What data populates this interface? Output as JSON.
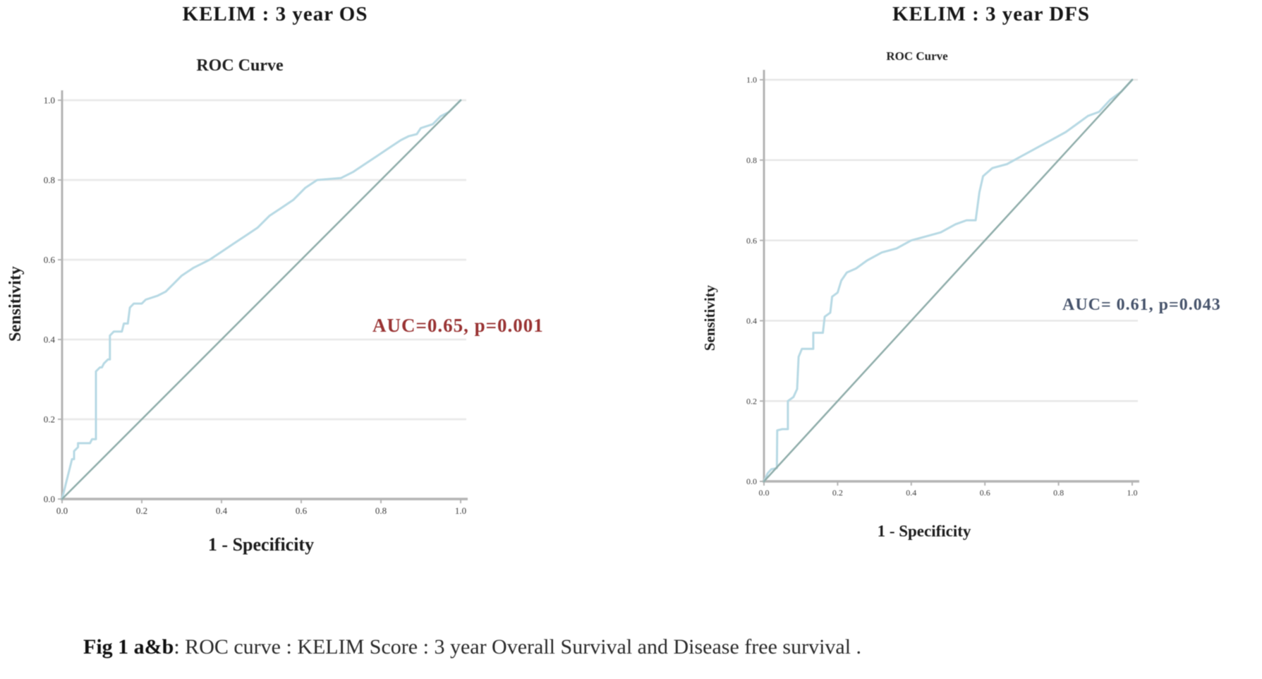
{
  "figure": {
    "caption_bold": "Fig 1 a&b",
    "caption_rest": ": ROC curve : KELIM Score : 3 year Overall Survival and Disease  free survival ."
  },
  "chart_data": [
    {
      "type": "line",
      "panel_title": "KELIM : 3 year OS",
      "title": "ROC Curve",
      "xlabel": "1 - Specificity",
      "ylabel": "Sensitivity",
      "xlim": [
        0,
        1
      ],
      "ylim": [
        0,
        1
      ],
      "xticks": [
        0,
        0.2,
        0.4,
        0.6,
        0.8,
        1.0
      ],
      "xtick_labels": [
        "0.0",
        "0.2",
        "0.4",
        "0.6",
        "0.8",
        "1.0"
      ],
      "yticks": [
        0,
        0.2,
        0.4,
        0.6,
        0.8,
        1.0
      ],
      "ytick_labels": [
        "0.0",
        "0.2",
        "0.4",
        "0.6",
        "0.8",
        "1.0"
      ],
      "grid": "horizontal",
      "grid_color": "#e8e8e8",
      "axis_color": "#b4b4b4",
      "legend": "none",
      "auc": 0.65,
      "p_value": 0.001,
      "annotation": {
        "text": "AUC=0.65, p=0.001",
        "color": "#993333"
      },
      "series": [
        {
          "name": "ROC curve",
          "color": "#b7d9e4",
          "width": 3,
          "points": [
            [
              0,
              0
            ],
            [
              0.01,
              0.04
            ],
            [
              0.02,
              0.08
            ],
            [
              0.025,
              0.1
            ],
            [
              0.03,
              0.1
            ],
            [
              0.03,
              0.12
            ],
            [
              0.04,
              0.13
            ],
            [
              0.04,
              0.14
            ],
            [
              0.07,
              0.14
            ],
            [
              0.075,
              0.15
            ],
            [
              0.085,
              0.15
            ],
            [
              0.085,
              0.32
            ],
            [
              0.095,
              0.33
            ],
            [
              0.1,
              0.33
            ],
            [
              0.105,
              0.34
            ],
            [
              0.115,
              0.35
            ],
            [
              0.12,
              0.35
            ],
            [
              0.12,
              0.41
            ],
            [
              0.13,
              0.42
            ],
            [
              0.15,
              0.42
            ],
            [
              0.155,
              0.44
            ],
            [
              0.165,
              0.44
            ],
            [
              0.17,
              0.48
            ],
            [
              0.18,
              0.49
            ],
            [
              0.2,
              0.49
            ],
            [
              0.21,
              0.5
            ],
            [
              0.24,
              0.51
            ],
            [
              0.26,
              0.52
            ],
            [
              0.28,
              0.54
            ],
            [
              0.3,
              0.56
            ],
            [
              0.33,
              0.58
            ],
            [
              0.35,
              0.59
            ],
            [
              0.37,
              0.6
            ],
            [
              0.4,
              0.62
            ],
            [
              0.43,
              0.64
            ],
            [
              0.46,
              0.66
            ],
            [
              0.49,
              0.68
            ],
            [
              0.52,
              0.71
            ],
            [
              0.55,
              0.73
            ],
            [
              0.58,
              0.75
            ],
            [
              0.61,
              0.78
            ],
            [
              0.64,
              0.8
            ],
            [
              0.7,
              0.805
            ],
            [
              0.73,
              0.82
            ],
            [
              0.76,
              0.84
            ],
            [
              0.79,
              0.86
            ],
            [
              0.82,
              0.88
            ],
            [
              0.85,
              0.9
            ],
            [
              0.87,
              0.91
            ],
            [
              0.89,
              0.915
            ],
            [
              0.9,
              0.93
            ],
            [
              0.93,
              0.94
            ],
            [
              0.95,
              0.96
            ],
            [
              0.97,
              0.97
            ],
            [
              1,
              1
            ]
          ]
        },
        {
          "name": "reference diagonal",
          "color": "#8fadaa",
          "width": 2.5,
          "points": [
            [
              0,
              0
            ],
            [
              1,
              1
            ]
          ]
        }
      ]
    },
    {
      "type": "line",
      "panel_title": "KELIM : 3 year DFS",
      "title": "ROC Curve",
      "xlabel": "1 - Specificity",
      "ylabel": "Sensitivity",
      "xlim": [
        0,
        1
      ],
      "ylim": [
        0,
        1
      ],
      "xticks": [
        0,
        0.2,
        0.4,
        0.6,
        0.8,
        1.0
      ],
      "xtick_labels": [
        "0.0",
        "0.2",
        "0.4",
        "0.6",
        "0.8",
        "1.0"
      ],
      "yticks": [
        0,
        0.2,
        0.4,
        0.6,
        0.8,
        1.0
      ],
      "ytick_labels": [
        "0.0",
        "0.2",
        "0.4",
        "0.6",
        "0.8",
        "1.0"
      ],
      "grid": "horizontal",
      "grid_color": "#e6e6e6",
      "axis_color": "#b4b4b4",
      "legend": "none",
      "auc": 0.61,
      "p_value": 0.043,
      "annotation": {
        "text": "AUC= 0.61, p=0.043",
        "color": "#46536b"
      },
      "series": [
        {
          "name": "ROC curve",
          "color": "#b7d9e4",
          "width": 3,
          "points": [
            [
              0,
              0
            ],
            [
              0.01,
              0.02
            ],
            [
              0.02,
              0.03
            ],
            [
              0.035,
              0.033
            ],
            [
              0.036,
              0.127
            ],
            [
              0.05,
              0.13
            ],
            [
              0.065,
              0.13
            ],
            [
              0.065,
              0.2
            ],
            [
              0.08,
              0.21
            ],
            [
              0.09,
              0.23
            ],
            [
              0.094,
              0.31
            ],
            [
              0.103,
              0.33
            ],
            [
              0.134,
              0.33
            ],
            [
              0.134,
              0.37
            ],
            [
              0.16,
              0.37
            ],
            [
              0.165,
              0.41
            ],
            [
              0.18,
              0.42
            ],
            [
              0.185,
              0.46
            ],
            [
              0.2,
              0.47
            ],
            [
              0.21,
              0.5
            ],
            [
              0.225,
              0.52
            ],
            [
              0.25,
              0.53
            ],
            [
              0.28,
              0.55
            ],
            [
              0.32,
              0.57
            ],
            [
              0.36,
              0.58
            ],
            [
              0.4,
              0.6
            ],
            [
              0.44,
              0.61
            ],
            [
              0.48,
              0.62
            ],
            [
              0.52,
              0.64
            ],
            [
              0.55,
              0.65
            ],
            [
              0.575,
              0.65
            ],
            [
              0.585,
              0.72
            ],
            [
              0.595,
              0.76
            ],
            [
              0.62,
              0.78
            ],
            [
              0.66,
              0.79
            ],
            [
              0.7,
              0.81
            ],
            [
              0.74,
              0.83
            ],
            [
              0.78,
              0.85
            ],
            [
              0.82,
              0.87
            ],
            [
              0.85,
              0.89
            ],
            [
              0.88,
              0.91
            ],
            [
              0.91,
              0.92
            ],
            [
              0.94,
              0.95
            ],
            [
              0.97,
              0.97
            ],
            [
              1,
              1
            ]
          ]
        },
        {
          "name": "reference diagonal",
          "color": "#8fadaa",
          "width": 2.5,
          "points": [
            [
              0,
              0
            ],
            [
              1,
              1
            ]
          ]
        }
      ]
    }
  ]
}
